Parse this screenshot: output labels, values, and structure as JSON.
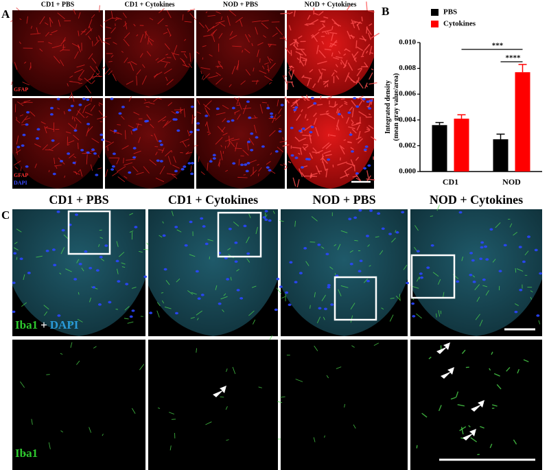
{
  "panel_a": {
    "label": "A",
    "columns": [
      "CD1 + PBS",
      "CD1 + Cytokines",
      "NOD + PBS",
      "NOD + Cytokines"
    ],
    "stain_top": "GFAP",
    "stain_bottom": [
      "GFAP",
      "DAPI"
    ]
  },
  "chart_data": {
    "type": "bar",
    "panel_label": "B",
    "ylabel": [
      "Integrated density",
      "(mean gray value/area)"
    ],
    "categories": [
      "CD1",
      "NOD"
    ],
    "series": [
      {
        "name": "PBS",
        "color": "#000000",
        "values": [
          0.0036,
          0.0025
        ],
        "errors": [
          0.0002,
          0.0004
        ]
      },
      {
        "name": "Cytokines",
        "color": "#ff0000",
        "values": [
          0.0041,
          0.0077
        ],
        "errors": [
          0.0003,
          0.0006
        ]
      }
    ],
    "ylim": [
      0,
      0.01
    ],
    "yticks": [
      {
        "value": 0,
        "label": "0.000"
      },
      {
        "value": 0.002,
        "label": "0.002"
      },
      {
        "value": 0.004,
        "label": "0.004"
      },
      {
        "value": 0.006,
        "label": "0.006"
      },
      {
        "value": 0.008,
        "label": "0.008"
      },
      {
        "value": 0.01,
        "label": "0.010"
      }
    ],
    "annotations": [
      "***",
      "****"
    ],
    "legend": "top-left"
  },
  "panel_c": {
    "label": "C",
    "columns": [
      "CD1 + PBS",
      "CD1 + Cytokines",
      "NOD + PBS",
      "NOD + Cytokines"
    ],
    "stain_top": [
      "Iba1",
      "+",
      "DAPI"
    ],
    "stain_bottom": "Iba1"
  }
}
